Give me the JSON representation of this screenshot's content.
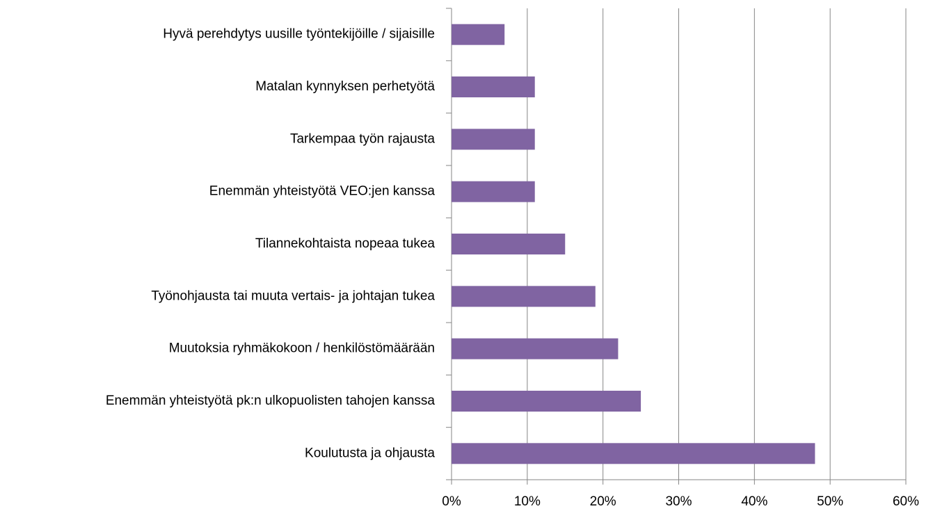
{
  "chart_data": {
    "type": "barh",
    "categories": [
      "Hyvä perehdytys uusille työntekijöille / sijaisille",
      "Matalan kynnyksen perhetyötä",
      "Tarkempaa työn rajausta",
      "Enemmän yhteistyötä VEO:jen kanssa",
      "Tilannekohtaista nopeaa tukea",
      "Työnohjausta tai muuta vertais- ja johtajan tukea",
      "Muutoksia ryhmäkokoon / henkilöstömäärään",
      "Enemmän yhteistyötä pk:n ulkopuolisten tahojen kanssa",
      "Koulutusta ja ohjausta"
    ],
    "values": [
      7,
      11,
      11,
      11,
      15,
      19,
      22,
      25,
      48
    ],
    "color": "#8064a2",
    "xlim": [
      0,
      60
    ],
    "xticks": [
      {
        "value": 0,
        "label": "0%"
      },
      {
        "value": 10,
        "label": "10%"
      },
      {
        "value": 20,
        "label": "20%"
      },
      {
        "value": 30,
        "label": "30%"
      },
      {
        "value": 40,
        "label": "40%"
      },
      {
        "value": 50,
        "label": "50%"
      },
      {
        "value": 60,
        "label": "60%"
      }
    ],
    "grid": true
  }
}
